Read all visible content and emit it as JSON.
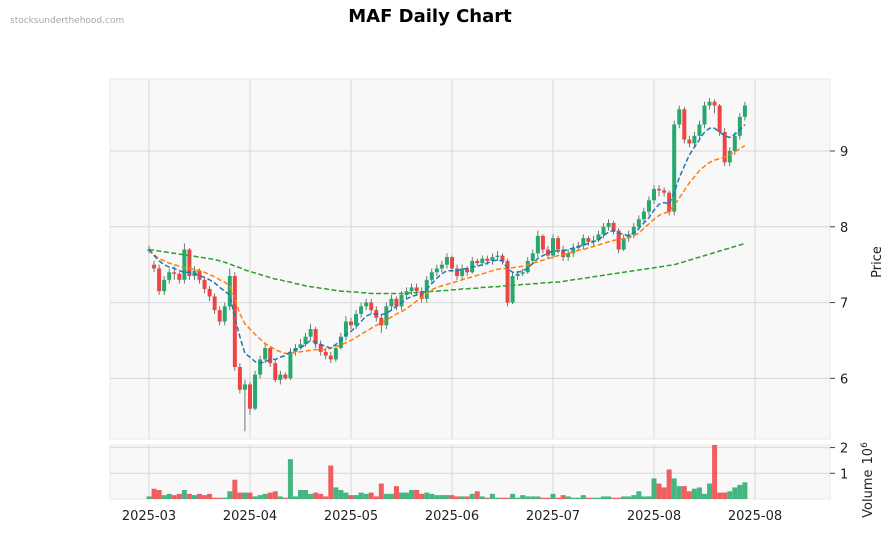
{
  "watermark": "stocksunderthehood.com",
  "chart_data": {
    "type": "candlestick",
    "title": "MAF Daily Chart",
    "ylabel": "Price",
    "volume_label": "Volume",
    "volume_exponent_base": "10",
    "volume_exponent_power": "6",
    "price_ylim": [
      5.2,
      9.95
    ],
    "volume_ylim": [
      0,
      2.1
    ],
    "price_ticks": [
      "6",
      "7",
      "8",
      "9"
    ],
    "volume_ticks": [
      "1",
      "2"
    ],
    "x_tick_labels": [
      "2025-03",
      "2025-04",
      "2025-05",
      "2025-06",
      "2025-07",
      "2025-08",
      "2025-08"
    ],
    "x_tick_index": [
      0,
      20,
      40,
      60,
      80,
      100,
      120
    ],
    "up_color": "#26a96c",
    "down_color": "#ef4444",
    "ma_short_color": "#1f77b4",
    "ma_mid_color": "#ff7f0e",
    "ma_long_color": "#2ca02c",
    "close": [
      7.7,
      7.45,
      7.15,
      7.3,
      7.4,
      7.38,
      7.3,
      7.7,
      7.35,
      7.42,
      7.3,
      7.18,
      7.08,
      6.9,
      6.75,
      6.95,
      7.35,
      6.15,
      5.85,
      5.92,
      5.6,
      6.05,
      6.25,
      6.4,
      6.2,
      5.98,
      6.05,
      6.0,
      6.35,
      6.4,
      6.45,
      6.55,
      6.65,
      6.45,
      6.35,
      6.3,
      6.25,
      6.4,
      6.55,
      6.75,
      6.7,
      6.85,
      6.95,
      7.0,
      6.9,
      6.8,
      6.7,
      6.95,
      7.05,
      6.95,
      7.1,
      7.15,
      7.2,
      7.15,
      7.05,
      7.3,
      7.4,
      7.45,
      7.5,
      7.6,
      7.45,
      7.35,
      7.45,
      7.4,
      7.55,
      7.52,
      7.58,
      7.55,
      7.6,
      7.62,
      7.55,
      7.0,
      7.35,
      7.38,
      7.4,
      7.55,
      7.65,
      7.88,
      7.7,
      7.62,
      7.85,
      7.7,
      7.6,
      7.65,
      7.72,
      7.75,
      7.85,
      7.8,
      7.82,
      7.9,
      8.0,
      8.05,
      7.95,
      7.7,
      7.85,
      7.9,
      8.0,
      8.1,
      8.2,
      8.35,
      8.5,
      8.48,
      8.45,
      8.2,
      9.35,
      9.55,
      9.15,
      9.1,
      9.2,
      9.35,
      9.6,
      9.65,
      9.6,
      9.25,
      8.85,
      9.0,
      9.2,
      9.45,
      9.6
    ],
    "open": [
      7.7,
      7.5,
      7.45,
      7.15,
      7.3,
      7.4,
      7.38,
      7.3,
      7.7,
      7.35,
      7.42,
      7.3,
      7.18,
      7.08,
      6.9,
      6.75,
      6.95,
      7.35,
      6.15,
      5.85,
      5.92,
      5.6,
      6.05,
      6.25,
      6.4,
      6.2,
      5.98,
      6.05,
      6.0,
      6.35,
      6.4,
      6.45,
      6.55,
      6.65,
      6.45,
      6.35,
      6.3,
      6.25,
      6.4,
      6.55,
      6.75,
      6.7,
      6.85,
      6.95,
      7.0,
      6.9,
      6.8,
      6.7,
      6.95,
      7.05,
      6.95,
      7.1,
      7.15,
      7.2,
      7.15,
      7.05,
      7.3,
      7.4,
      7.45,
      7.5,
      7.6,
      7.45,
      7.35,
      7.45,
      7.4,
      7.55,
      7.52,
      7.58,
      7.55,
      7.6,
      7.62,
      7.55,
      7.0,
      7.35,
      7.38,
      7.4,
      7.55,
      7.65,
      7.88,
      7.7,
      7.62,
      7.85,
      7.7,
      7.6,
      7.65,
      7.72,
      7.75,
      7.85,
      7.8,
      7.82,
      7.9,
      8.0,
      8.05,
      7.95,
      7.7,
      7.85,
      7.9,
      8.0,
      8.1,
      8.2,
      8.35,
      8.5,
      8.48,
      8.45,
      8.2,
      9.35,
      9.55,
      9.15,
      9.1,
      9.2,
      9.35,
      9.6,
      9.65,
      9.6,
      9.25,
      8.85,
      9.0,
      9.2,
      9.45
    ],
    "high": [
      7.75,
      7.55,
      7.5,
      7.35,
      7.45,
      7.48,
      7.4,
      7.78,
      7.72,
      7.48,
      7.45,
      7.32,
      7.22,
      7.12,
      6.95,
      7.0,
      7.45,
      7.4,
      6.2,
      5.98,
      5.95,
      6.1,
      6.3,
      6.45,
      6.42,
      6.25,
      6.1,
      6.08,
      6.4,
      6.45,
      6.52,
      6.6,
      6.72,
      6.68,
      6.5,
      6.4,
      6.35,
      6.45,
      6.6,
      6.82,
      6.8,
      6.9,
      7.0,
      7.05,
      7.05,
      6.95,
      6.85,
      7.0,
      7.1,
      7.08,
      7.15,
      7.2,
      7.25,
      7.25,
      7.2,
      7.35,
      7.45,
      7.5,
      7.55,
      7.65,
      7.62,
      7.5,
      7.5,
      7.48,
      7.6,
      7.58,
      7.62,
      7.62,
      7.65,
      7.68,
      7.65,
      7.58,
      7.4,
      7.42,
      7.45,
      7.6,
      7.7,
      7.95,
      7.9,
      7.75,
      7.9,
      7.88,
      7.75,
      7.7,
      7.78,
      7.8,
      7.9,
      7.88,
      7.88,
      7.95,
      8.05,
      8.1,
      8.08,
      7.98,
      7.9,
      7.95,
      8.05,
      8.15,
      8.25,
      8.4,
      8.55,
      8.55,
      8.52,
      8.48,
      9.4,
      9.6,
      9.58,
      9.2,
      9.25,
      9.4,
      9.65,
      9.7,
      9.68,
      9.62,
      9.3,
      9.05,
      9.25,
      9.5,
      9.65
    ],
    "low": [
      7.65,
      7.4,
      7.1,
      7.1,
      7.25,
      7.3,
      7.25,
      7.25,
      7.3,
      7.3,
      7.25,
      7.12,
      7.02,
      6.85,
      6.7,
      6.7,
      6.9,
      6.1,
      5.8,
      5.3,
      5.52,
      5.58,
      6.0,
      6.2,
      6.15,
      5.95,
      5.92,
      5.98,
      5.98,
      6.3,
      6.38,
      6.42,
      6.5,
      6.4,
      6.3,
      6.25,
      6.2,
      6.22,
      6.38,
      6.5,
      6.65,
      6.65,
      6.8,
      6.9,
      6.85,
      6.75,
      6.6,
      6.65,
      6.9,
      6.9,
      6.9,
      7.05,
      7.1,
      7.1,
      7.0,
      7.0,
      7.25,
      7.35,
      7.4,
      7.45,
      7.4,
      7.3,
      7.3,
      7.35,
      7.38,
      7.48,
      7.48,
      7.5,
      7.5,
      7.55,
      7.5,
      6.95,
      6.98,
      7.3,
      7.35,
      7.38,
      7.5,
      7.6,
      7.65,
      7.58,
      7.58,
      7.65,
      7.55,
      7.55,
      7.6,
      7.68,
      7.7,
      7.75,
      7.75,
      7.8,
      7.85,
      7.95,
      7.9,
      7.65,
      7.68,
      7.8,
      7.85,
      7.95,
      8.05,
      8.15,
      8.3,
      8.4,
      8.4,
      8.15,
      8.15,
      9.3,
      9.1,
      9.05,
      9.05,
      9.15,
      9.3,
      9.55,
      9.5,
      9.2,
      8.8,
      8.8,
      8.95,
      9.15,
      9.4
    ],
    "volume": [
      0.1,
      0.4,
      0.35,
      0.15,
      0.2,
      0.15,
      0.2,
      0.35,
      0.2,
      0.15,
      0.2,
      0.15,
      0.2,
      0.05,
      0.05,
      0.05,
      0.3,
      0.75,
      0.25,
      0.25,
      0.25,
      0.1,
      0.15,
      0.2,
      0.25,
      0.3,
      0.1,
      0.05,
      1.55,
      0.1,
      0.35,
      0.35,
      0.2,
      0.25,
      0.2,
      0.1,
      1.3,
      0.45,
      0.35,
      0.25,
      0.15,
      0.15,
      0.25,
      0.2,
      0.25,
      0.1,
      0.6,
      0.2,
      0.2,
      0.5,
      0.25,
      0.25,
      0.35,
      0.35,
      0.2,
      0.25,
      0.2,
      0.15,
      0.15,
      0.15,
      0.15,
      0.1,
      0.1,
      0.1,
      0.2,
      0.3,
      0.1,
      0.05,
      0.2,
      0.05,
      0.05,
      0.05,
      0.2,
      0.05,
      0.15,
      0.1,
      0.1,
      0.1,
      0.05,
      0.05,
      0.2,
      0.05,
      0.15,
      0.1,
      0.05,
      0.05,
      0.15,
      0.05,
      0.05,
      0.05,
      0.1,
      0.1,
      0.05,
      0.05,
      0.1,
      0.1,
      0.15,
      0.3,
      0.1,
      0.1,
      0.8,
      0.6,
      0.45,
      1.15,
      0.8,
      0.5,
      0.5,
      0.3,
      0.4,
      0.45,
      0.2,
      0.6,
      2.1,
      0.25,
      0.25,
      0.3,
      0.45,
      0.55,
      0.65
    ],
    "ma_short": [
      7.7,
      7.62,
      7.55,
      7.5,
      7.47,
      7.45,
      7.42,
      7.4,
      7.4,
      7.38,
      7.36,
      7.33,
      7.3,
      7.26,
      7.2,
      7.15,
      7.1,
      6.8,
      6.55,
      6.33,
      6.28,
      6.22,
      6.2,
      6.22,
      6.25,
      6.25,
      6.28,
      6.3,
      6.35,
      6.38,
      6.4,
      6.45,
      6.5,
      6.48,
      6.45,
      6.42,
      6.4,
      6.45,
      6.5,
      6.58,
      6.62,
      6.68,
      6.75,
      6.82,
      6.85,
      6.85,
      6.84,
      6.86,
      6.9,
      6.95,
      7.0,
      7.05,
      7.08,
      7.1,
      7.12,
      7.18,
      7.25,
      7.32,
      7.38,
      7.42,
      7.42,
      7.42,
      7.44,
      7.45,
      7.47,
      7.48,
      7.5,
      7.52,
      7.55,
      7.56,
      7.55,
      7.45,
      7.4,
      7.4,
      7.42,
      7.45,
      7.52,
      7.58,
      7.62,
      7.65,
      7.68,
      7.68,
      7.68,
      7.7,
      7.72,
      7.74,
      7.76,
      7.78,
      7.8,
      7.83,
      7.88,
      7.93,
      7.95,
      7.92,
      7.9,
      7.88,
      7.92,
      7.98,
      8.05,
      8.12,
      8.22,
      8.3,
      8.32,
      8.3,
      8.45,
      8.65,
      8.8,
      8.95,
      9.05,
      9.15,
      9.25,
      9.3,
      9.3,
      9.25,
      9.2,
      9.18,
      9.22,
      9.28,
      9.35
    ],
    "ma_mid": [
      7.7,
      7.63,
      7.58,
      7.55,
      7.52,
      7.5,
      7.48,
      7.46,
      7.45,
      7.44,
      7.42,
      7.4,
      7.37,
      7.34,
      7.3,
      7.27,
      7.22,
      7.05,
      6.85,
      6.72,
      6.65,
      6.58,
      6.52,
      6.46,
      6.42,
      6.38,
      6.35,
      6.33,
      6.33,
      6.34,
      6.35,
      6.36,
      6.37,
      6.38,
      6.38,
      6.38,
      6.4,
      6.42,
      6.44,
      6.47,
      6.5,
      6.54,
      6.58,
      6.62,
      6.66,
      6.7,
      6.73,
      6.77,
      6.81,
      6.85,
      6.88,
      6.92,
      6.97,
      7.02,
      7.07,
      7.12,
      7.17,
      7.2,
      7.22,
      7.24,
      7.26,
      7.28,
      7.3,
      7.32,
      7.34,
      7.36,
      7.38,
      7.4,
      7.42,
      7.44,
      7.45,
      7.45,
      7.46,
      7.47,
      7.48,
      7.5,
      7.52,
      7.54,
      7.56,
      7.58,
      7.6,
      7.62,
      7.63,
      7.65,
      7.67,
      7.69,
      7.7,
      7.72,
      7.74,
      7.76,
      7.78,
      7.8,
      7.82,
      7.83,
      7.84,
      7.86,
      7.88,
      7.92,
      7.98,
      8.04,
      8.1,
      8.15,
      8.18,
      8.2,
      8.28,
      8.38,
      8.48,
      8.58,
      8.66,
      8.74,
      8.8,
      8.85,
      8.88,
      8.9,
      8.92,
      8.95,
      8.99,
      9.03,
      9.07
    ],
    "ma_long": [
      7.7,
      7.69,
      7.68,
      7.67,
      7.66,
      7.65,
      7.64,
      7.63,
      7.62,
      7.61,
      7.6,
      7.59,
      7.58,
      7.57,
      7.55,
      7.53,
      7.51,
      7.48,
      7.46,
      7.43,
      7.41,
      7.39,
      7.37,
      7.35,
      7.33,
      7.31,
      7.3,
      7.28,
      7.27,
      7.25,
      7.24,
      7.22,
      7.21,
      7.2,
      7.19,
      7.18,
      7.17,
      7.16,
      7.15,
      7.15,
      7.14,
      7.14,
      7.13,
      7.13,
      7.12,
      7.12,
      7.12,
      7.12,
      7.12,
      7.12,
      7.12,
      7.12,
      7.13,
      7.13,
      7.14,
      7.14,
      7.15,
      7.15,
      7.16,
      7.16,
      7.17,
      7.17,
      7.18,
      7.18,
      7.19,
      7.19,
      7.2,
      7.2,
      7.21,
      7.21,
      7.22,
      7.22,
      7.23,
      7.23,
      7.24,
      7.24,
      7.25,
      7.25,
      7.26,
      7.26,
      7.27,
      7.27,
      7.28,
      7.29,
      7.3,
      7.31,
      7.32,
      7.33,
      7.34,
      7.35,
      7.36,
      7.37,
      7.38,
      7.39,
      7.4,
      7.41,
      7.42,
      7.43,
      7.44,
      7.45,
      7.46,
      7.47,
      7.48,
      7.49,
      7.5,
      7.52,
      7.54,
      7.56,
      7.58,
      7.6,
      7.62,
      7.64,
      7.66,
      7.68,
      7.7,
      7.72,
      7.74,
      7.76,
      7.78
    ]
  }
}
